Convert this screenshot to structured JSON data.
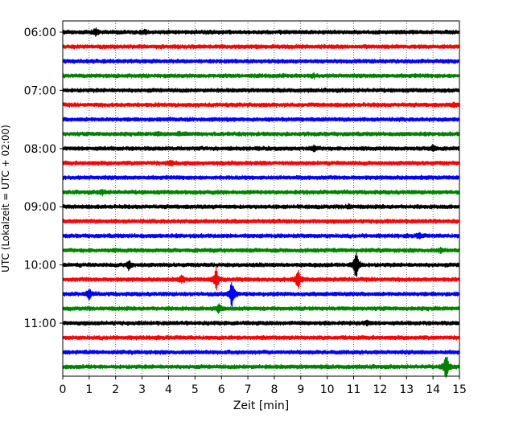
{
  "chart_data": {
    "type": "line",
    "title": "",
    "xlabel": "Zeit  [min]",
    "ylabel": "UTC (Lokalzeit = UTC + 02:00)",
    "xlim": [
      0,
      15
    ],
    "x_ticks": [
      0,
      1,
      2,
      3,
      4,
      5,
      6,
      7,
      8,
      9,
      10,
      11,
      12,
      13,
      14,
      15
    ],
    "y_tick_labels": [
      "06:00",
      "07:00",
      "08:00",
      "09:00",
      "10:00",
      "11:00"
    ],
    "grid": "vertical dotted lines at each minute",
    "trace_interval_minutes": 15,
    "color_cycle": [
      "#000000",
      "#ff0000",
      "#0000ff",
      "#008000"
    ],
    "traces": [
      {
        "start": "06:00",
        "events": [
          {
            "t": 1.25,
            "amp": 0.25
          },
          {
            "t": 3.1,
            "amp": 0.12
          }
        ]
      },
      {
        "start": "06:15",
        "events": []
      },
      {
        "start": "06:30",
        "events": []
      },
      {
        "start": "06:45",
        "events": [
          {
            "t": 9.5,
            "amp": 0.1
          }
        ]
      },
      {
        "start": "07:00",
        "events": []
      },
      {
        "start": "07:15",
        "events": [
          {
            "t": 14.8,
            "amp": 0.1
          }
        ]
      },
      {
        "start": "07:30",
        "events": []
      },
      {
        "start": "07:45",
        "events": [
          {
            "t": 3.6,
            "amp": 0.12
          },
          {
            "t": 4.4,
            "amp": 0.08
          }
        ]
      },
      {
        "start": "08:00",
        "events": [
          {
            "t": 9.5,
            "amp": 0.2
          },
          {
            "t": 14.0,
            "amp": 0.25
          }
        ]
      },
      {
        "start": "08:15",
        "events": [
          {
            "t": 4.1,
            "amp": 0.15
          }
        ]
      },
      {
        "start": "08:30",
        "events": []
      },
      {
        "start": "08:45",
        "events": [
          {
            "t": 1.5,
            "amp": 0.15
          }
        ]
      },
      {
        "start": "09:00",
        "events": [
          {
            "t": 10.8,
            "amp": 0.12
          }
        ]
      },
      {
        "start": "09:15",
        "events": []
      },
      {
        "start": "09:30",
        "events": [
          {
            "t": 13.5,
            "amp": 0.15
          }
        ]
      },
      {
        "start": "09:45",
        "events": [
          {
            "t": 14.3,
            "amp": 0.12
          }
        ]
      },
      {
        "start": "10:00",
        "events": [
          {
            "t": 2.5,
            "amp": 0.35
          },
          {
            "t": 11.1,
            "amp": 1.3
          }
        ]
      },
      {
        "start": "10:15",
        "events": [
          {
            "t": 4.5,
            "amp": 0.25
          },
          {
            "t": 5.8,
            "amp": 0.8
          },
          {
            "t": 8.9,
            "amp": 0.75
          }
        ]
      },
      {
        "start": "10:30",
        "events": [
          {
            "t": 1.0,
            "amp": 0.35
          },
          {
            "t": 6.4,
            "amp": 1.0
          }
        ]
      },
      {
        "start": "10:45",
        "events": [
          {
            "t": 5.9,
            "amp": 0.3
          }
        ]
      },
      {
        "start": "11:00",
        "events": [
          {
            "t": 11.5,
            "amp": 0.15
          }
        ]
      },
      {
        "start": "11:15",
        "events": []
      },
      {
        "start": "11:30",
        "events": []
      },
      {
        "start": "11:45",
        "events": [
          {
            "t": 14.5,
            "amp": 1.0
          }
        ]
      }
    ]
  }
}
